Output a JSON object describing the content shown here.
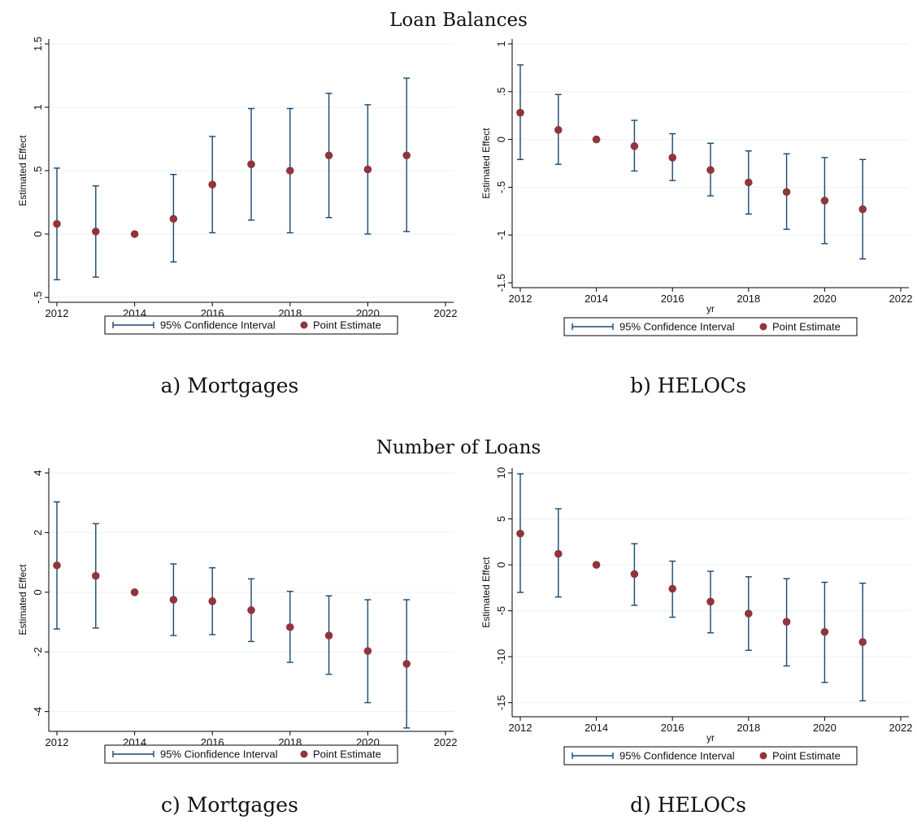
{
  "headings": {
    "top": "Loan Balances",
    "bottom": "Number of Loans"
  },
  "captions": [
    "a) Mortgages",
    "b) HELOCs",
    "c) Mortgages",
    "d) HELOCs"
  ],
  "colors": {
    "ci": "#1a476f",
    "point": "#90353b",
    "grid": "#eaf2f3",
    "axis": "#000000"
  },
  "chart_data": [
    {
      "type": "scatter",
      "subtitle": "a) Mortgages",
      "ylabel": "Estimated Effect",
      "xlabel": "",
      "xlim": [
        2012,
        2022
      ],
      "ylim": [
        -0.5,
        1.5
      ],
      "xticks": [
        "2012",
        "2014",
        "2016",
        "2018",
        "2020",
        "2022"
      ],
      "yticks": [
        {
          "v": -0.5,
          "t": "-.5"
        },
        {
          "v": 0,
          "t": "0"
        },
        {
          "v": 0.5,
          "t": ".5"
        },
        {
          "v": 1,
          "t": "1"
        },
        {
          "v": 1.5,
          "t": "1.5"
        }
      ],
      "grid": true,
      "legend": {
        "placement": "bottom",
        "ci_label": "95% Confidence Interval",
        "point_label": "Point Estimate"
      },
      "x": [
        2012,
        2013,
        2014,
        2015,
        2016,
        2017,
        2018,
        2019,
        2020,
        2021
      ],
      "estimate": [
        0.08,
        0.02,
        0.0,
        0.12,
        0.39,
        0.55,
        0.5,
        0.62,
        0.51,
        0.62
      ],
      "ci_low": [
        -0.36,
        -0.34,
        null,
        -0.22,
        0.01,
        0.11,
        0.01,
        0.13,
        0.0,
        0.02
      ],
      "ci_high": [
        0.52,
        0.38,
        null,
        0.47,
        0.77,
        0.99,
        0.99,
        1.11,
        1.02,
        1.23
      ]
    },
    {
      "type": "scatter",
      "subtitle": "b) HELOCs",
      "ylabel": "Estimated Effect",
      "xlabel": "yr",
      "xlim": [
        2012,
        2022
      ],
      "ylim": [
        -1.5,
        1
      ],
      "xticks": [
        "2012",
        "2014",
        "2016",
        "2018",
        "2020",
        "2022"
      ],
      "yticks": [
        {
          "v": -1.5,
          "t": "-1.5"
        },
        {
          "v": -1,
          "t": "-1"
        },
        {
          "v": -0.5,
          "t": "-.5"
        },
        {
          "v": 0,
          "t": "0"
        },
        {
          "v": 0.5,
          "t": ".5"
        },
        {
          "v": 1,
          "t": "1"
        }
      ],
      "grid": true,
      "legend": {
        "placement": "bottom",
        "ci_label": "95% Confidence Interval",
        "point_label": "Point Estimate"
      },
      "x": [
        2012,
        2013,
        2014,
        2015,
        2016,
        2017,
        2018,
        2019,
        2020,
        2021
      ],
      "estimate": [
        0.28,
        0.1,
        0.0,
        -0.07,
        -0.19,
        -0.32,
        -0.45,
        -0.55,
        -0.64,
        -0.73
      ],
      "ci_low": [
        -0.21,
        -0.26,
        null,
        -0.33,
        -0.43,
        -0.59,
        -0.78,
        -0.94,
        -1.09,
        -1.25
      ],
      "ci_high": [
        0.78,
        0.47,
        null,
        0.2,
        0.06,
        -0.04,
        -0.12,
        -0.15,
        -0.19,
        -0.21
      ]
    },
    {
      "type": "scatter",
      "subtitle": "c) Mortgages",
      "ylabel": "Estimated Effect",
      "xlabel": "",
      "xlim": [
        2012,
        2022
      ],
      "ylim": [
        -4.5,
        4
      ],
      "xticks": [
        "2012",
        "2014",
        "2016",
        "2018",
        "2020",
        "2022"
      ],
      "yticks": [
        {
          "v": -4,
          "t": "-4"
        },
        {
          "v": -2,
          "t": "-2"
        },
        {
          "v": 0,
          "t": "0"
        },
        {
          "v": 2,
          "t": "2"
        },
        {
          "v": 4,
          "t": "4"
        }
      ],
      "grid": true,
      "legend": {
        "placement": "bottom",
        "ci_label": "95% Cionfidence Interval",
        "point_label": "Point Estimate"
      },
      "x": [
        2012,
        2013,
        2014,
        2015,
        2016,
        2017,
        2018,
        2019,
        2020,
        2021
      ],
      "estimate": [
        0.9,
        0.55,
        0.0,
        -0.25,
        -0.3,
        -0.6,
        -1.17,
        -1.45,
        -1.97,
        -2.4
      ],
      "ci_low": [
        -1.23,
        -1.2,
        null,
        -1.45,
        -1.42,
        -1.65,
        -2.35,
        -2.75,
        -3.7,
        -4.55
      ],
      "ci_high": [
        3.03,
        2.3,
        null,
        0.95,
        0.82,
        0.45,
        0.03,
        -0.12,
        -0.25,
        -0.25
      ]
    },
    {
      "type": "scatter",
      "subtitle": "d) HELOCs",
      "ylabel": "Estimated Effect",
      "xlabel": "yr",
      "xlim": [
        2012,
        2022
      ],
      "ylim": [
        -16,
        10
      ],
      "xticks": [
        "2012",
        "2014",
        "2016",
        "2018",
        "2020",
        "2022"
      ],
      "yticks": [
        {
          "v": -15,
          "t": "-15"
        },
        {
          "v": -10,
          "t": "-10"
        },
        {
          "v": -5,
          "t": "-5"
        },
        {
          "v": 0,
          "t": "0"
        },
        {
          "v": 5,
          "t": "5"
        },
        {
          "v": 10,
          "t": "10"
        }
      ],
      "grid": true,
      "legend": {
        "placement": "bottom",
        "ci_label": "95% Confidence Interval",
        "point_label": "Point Estimate"
      },
      "x": [
        2012,
        2013,
        2014,
        2015,
        2016,
        2017,
        2018,
        2019,
        2020,
        2021
      ],
      "estimate": [
        3.4,
        1.2,
        0.0,
        -1.0,
        -2.6,
        -4.0,
        -5.3,
        -6.2,
        -7.3,
        -8.4
      ],
      "ci_low": [
        -3.0,
        -3.5,
        null,
        -4.4,
        -5.7,
        -7.4,
        -9.3,
        -11.0,
        -12.8,
        -14.8
      ],
      "ci_high": [
        9.9,
        6.1,
        null,
        2.3,
        0.4,
        -0.7,
        -1.3,
        -1.5,
        -1.9,
        -2.0
      ]
    }
  ]
}
